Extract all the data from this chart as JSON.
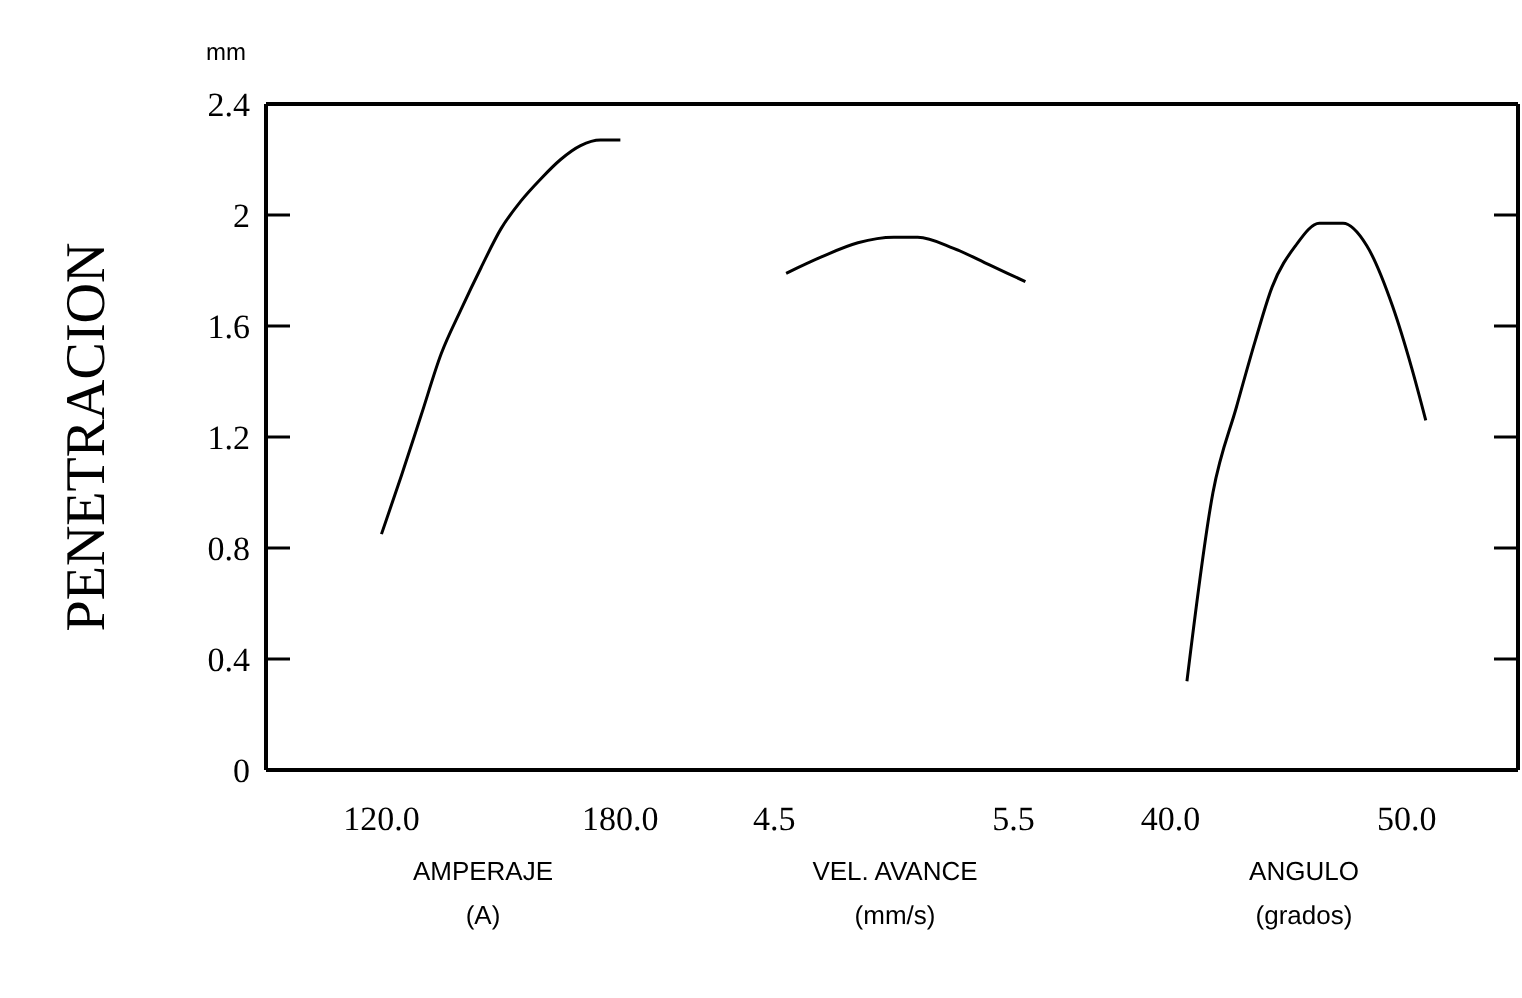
{
  "chart_data": [
    {
      "type": "line",
      "ylabel": "PENETRACION",
      "annotations": [
        "mm"
      ],
      "xlabel": "AMPERAJE\n(A)",
      "xlim": [
        91,
        200
      ],
      "xticks": [
        {
          "value": 120,
          "label": "120.0"
        },
        {
          "value": 180,
          "label": "180.0"
        }
      ],
      "ylim": [
        0,
        2.4
      ],
      "yticks": [
        0,
        0.4,
        0.8,
        1.2,
        1.6,
        2,
        2.4
      ],
      "series": [
        {
          "color": "#000000",
          "x": [
            120,
            125,
            130,
            135,
            140,
            145,
            150,
            155,
            160,
            165,
            170,
            175,
            180
          ],
          "values": [
            0.85,
            1.06,
            1.28,
            1.5,
            1.66,
            1.81,
            1.95,
            2.05,
            2.13,
            2.2,
            2.25,
            2.27,
            2.27
          ]
        }
      ]
    },
    {
      "type": "line",
      "xlabel": "VEL. AVANCE\n(mm/s)",
      "xlim": [
        4.19,
        5.82
      ],
      "xticks": [
        4.5,
        5.5
      ],
      "ylim": [
        0,
        2.4
      ],
      "tick_labels": "x",
      "series": [
        {
          "color": "#000000",
          "x": [
            4.55,
            4.7,
            4.85,
            5,
            5.1,
            5.25,
            5.4,
            5.55
          ],
          "values": [
            1.79,
            1.85,
            1.9,
            1.92,
            1.92,
            1.88,
            1.82,
            1.76
          ]
        }
      ]
    },
    {
      "type": "line",
      "xlabel": "ANGULO\n(grados)",
      "xlim": [
        36.6,
        54.7
      ],
      "xticks": [
        {
          "value": 40,
          "label": "40.0"
        },
        {
          "value": 50,
          "label": "50.0"
        }
      ],
      "ylim": [
        0,
        2.4
      ],
      "yticks": [
        {
          "value": 0,
          "label": null
        },
        {
          "value": 0.4,
          "label": null
        },
        {
          "value": 0.8,
          "label": null
        },
        {
          "value": 1.2,
          "label": null
        },
        {
          "value": 1.6,
          "label": null
        },
        {
          "value": 2,
          "label": null
        },
        {
          "value": 2.4,
          "label": null
        }
      ],
      "tick_labels": "x",
      "series": [
        {
          "color": "#000000",
          "x": [
            40.7,
            41.8,
            42.8,
            43.6,
            44.3,
            45.3,
            46.3,
            47.3,
            48.3,
            49.4,
            50.2,
            50.8
          ],
          "values": [
            0.32,
            1.0,
            1.31,
            1.55,
            1.74,
            1.89,
            1.97,
            1.97,
            1.89,
            1.67,
            1.45,
            1.26
          ]
        }
      ]
    }
  ]
}
